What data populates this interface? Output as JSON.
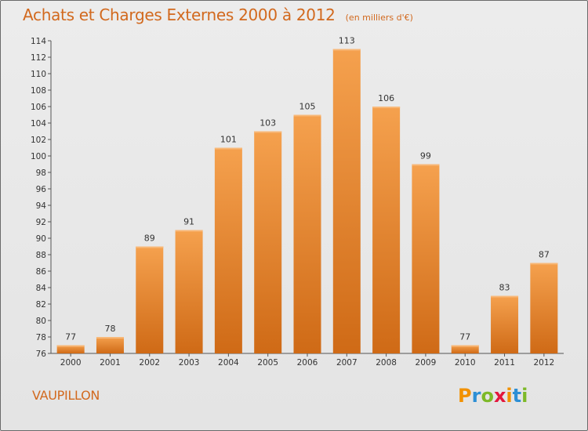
{
  "chart_data": {
    "type": "bar",
    "title": "Achats et Charges Externes 2000 à 2012",
    "subtitle": "(en milliers d'€)",
    "categories": [
      "2000",
      "2001",
      "2002",
      "2003",
      "2004",
      "2005",
      "2006",
      "2007",
      "2008",
      "2009",
      "2010",
      "2011",
      "2012"
    ],
    "values": [
      77,
      78,
      89,
      91,
      101,
      103,
      105,
      113,
      106,
      99,
      77,
      83,
      87
    ],
    "ylim": [
      76,
      114
    ],
    "yticks": [
      76,
      78,
      80,
      82,
      84,
      86,
      88,
      90,
      92,
      94,
      96,
      98,
      100,
      102,
      104,
      106,
      108,
      110,
      112,
      114
    ],
    "grid": false,
    "bar_color": "#e8842c"
  },
  "commune": "VAUPILLON",
  "logo": {
    "letters": [
      "P",
      "r",
      "o",
      "x",
      "i",
      "t",
      "i"
    ],
    "colors": [
      "#f29100",
      "#2d8fd5",
      "#7db928",
      "#e3173d",
      "#f29100",
      "#2d8fd5",
      "#7db928"
    ]
  }
}
